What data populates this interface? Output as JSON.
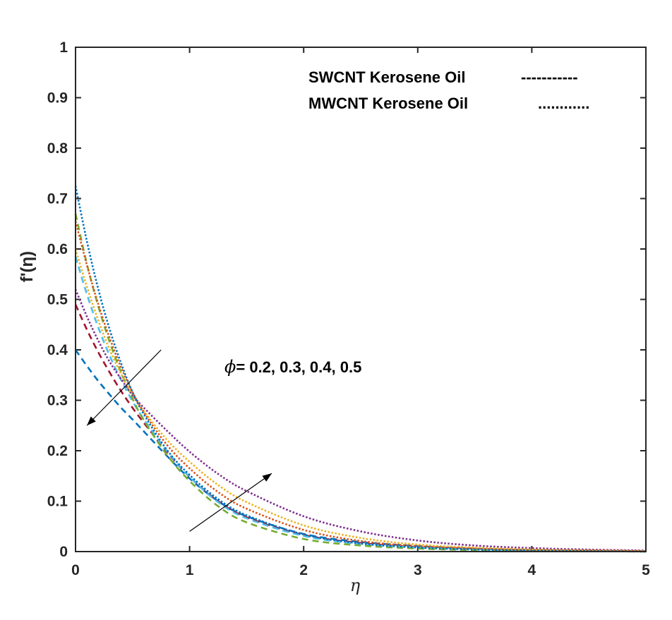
{
  "chart_data": {
    "type": "line",
    "title": "",
    "xlabel": "η",
    "ylabel": "f'(η)",
    "xlim": [
      0,
      5
    ],
    "ylim": [
      0,
      1
    ],
    "x_ticks": [
      "0",
      "1",
      "2",
      "3",
      "4",
      "5"
    ],
    "y_ticks": [
      "0",
      "0.1",
      "0.2",
      "0.3",
      "0.4",
      "0.5",
      "0.6",
      "0.7",
      "0.8",
      "0.9",
      "1"
    ],
    "legend": [
      {
        "label": "SWCNT Kerosene Oil",
        "sample": "-----------",
        "style": "dashed"
      },
      {
        "label": "MWCNT Kerosene Oil",
        "sample": "............",
        "style": "dotted"
      }
    ],
    "annotation": {
      "symbol": "ϕ",
      "text": "= 0.2, 0.3, 0.4, 0.5"
    },
    "x": [
      0,
      0.1,
      0.2,
      0.3,
      0.4,
      0.5,
      0.6,
      0.8,
      1.0,
      1.25,
      1.5,
      2.0,
      2.5,
      3.0,
      3.5,
      4.0,
      4.5,
      5.0
    ],
    "series": [
      {
        "name": "SWCNT ϕ=0.2",
        "style": "dashed",
        "color": "#0072BD",
        "values": [
          0.4,
          0.368,
          0.338,
          0.311,
          0.285,
          0.262,
          0.238,
          0.19,
          0.145,
          0.1,
          0.07,
          0.035,
          0.019,
          0.011,
          0.006,
          0.003,
          0.002,
          0.001
        ]
      },
      {
        "name": "SWCNT ϕ=0.3",
        "style": "dashed",
        "color": "#A2142F",
        "values": [
          0.49,
          0.44,
          0.395,
          0.355,
          0.318,
          0.285,
          0.255,
          0.198,
          0.148,
          0.1,
          0.068,
          0.033,
          0.017,
          0.009,
          0.005,
          0.003,
          0.002,
          0.001
        ]
      },
      {
        "name": "SWCNT ϕ=0.4",
        "style": "dashed",
        "color": "#4DBEEE",
        "values": [
          0.585,
          0.51,
          0.444,
          0.388,
          0.34,
          0.298,
          0.262,
          0.2,
          0.148,
          0.098,
          0.066,
          0.031,
          0.015,
          0.008,
          0.004,
          0.002,
          0.001,
          0.001
        ]
      },
      {
        "name": "SWCNT ϕ=0.5",
        "style": "dashed",
        "color": "#77AC30",
        "values": [
          0.67,
          0.57,
          0.486,
          0.415,
          0.355,
          0.303,
          0.26,
          0.192,
          0.14,
          0.09,
          0.058,
          0.025,
          0.012,
          0.006,
          0.003,
          0.002,
          0.001,
          0.0
        ]
      },
      {
        "name": "MWCNT ϕ=0.2",
        "style": "dotted",
        "color": "#7E2F8E",
        "values": [
          0.52,
          0.466,
          0.418,
          0.376,
          0.342,
          0.31,
          0.285,
          0.24,
          0.198,
          0.154,
          0.12,
          0.07,
          0.04,
          0.022,
          0.012,
          0.007,
          0.004,
          0.002
        ]
      },
      {
        "name": "MWCNT ϕ=0.3",
        "style": "dotted",
        "color": "#EDB120",
        "values": [
          0.6,
          0.525,
          0.458,
          0.4,
          0.352,
          0.31,
          0.278,
          0.222,
          0.178,
          0.132,
          0.098,
          0.052,
          0.027,
          0.014,
          0.008,
          0.004,
          0.002,
          0.001
        ]
      },
      {
        "name": "MWCNT ϕ=0.4",
        "style": "dotted",
        "color": "#D95319",
        "values": [
          0.655,
          0.568,
          0.49,
          0.423,
          0.365,
          0.316,
          0.276,
          0.212,
          0.165,
          0.118,
          0.085,
          0.043,
          0.021,
          0.011,
          0.006,
          0.003,
          0.002,
          0.001
        ]
      },
      {
        "name": "MWCNT ϕ=0.5",
        "style": "dotted",
        "color": "#0072BD",
        "values": [
          0.725,
          0.615,
          0.52,
          0.44,
          0.373,
          0.316,
          0.272,
          0.202,
          0.152,
          0.104,
          0.072,
          0.034,
          0.016,
          0.008,
          0.004,
          0.002,
          0.001,
          0.0
        ]
      }
    ],
    "arrows": [
      {
        "from": [
          0.75,
          0.4
        ],
        "to": [
          0.1,
          0.25
        ]
      },
      {
        "from": [
          1.0,
          0.04
        ],
        "to": [
          1.72,
          0.155
        ]
      }
    ]
  }
}
